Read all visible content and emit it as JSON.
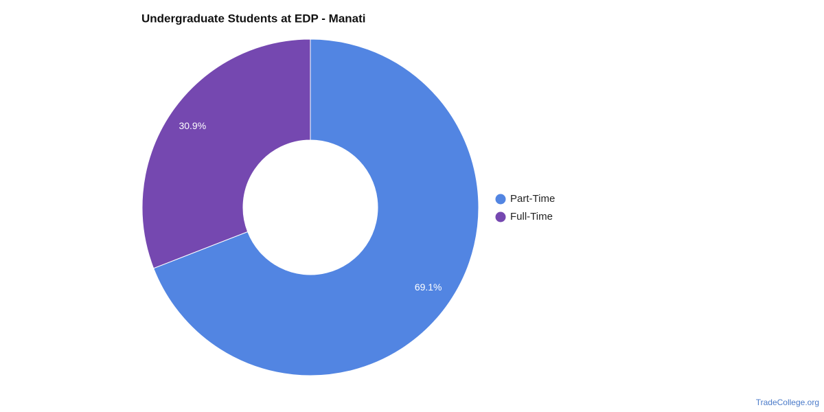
{
  "chart_data": {
    "type": "donut",
    "title": "Undergraduate Students at EDP - Manati",
    "categories": [
      "Part-Time",
      "Full-Time"
    ],
    "series": [
      {
        "name": "Students",
        "values": [
          69.1,
          30.9
        ],
        "value_labels": [
          "69.1%",
          "30.9%"
        ],
        "colors": [
          "#5285e2",
          "#7548b0"
        ]
      }
    ],
    "legend": "right",
    "source": "TradeCollege.org"
  }
}
